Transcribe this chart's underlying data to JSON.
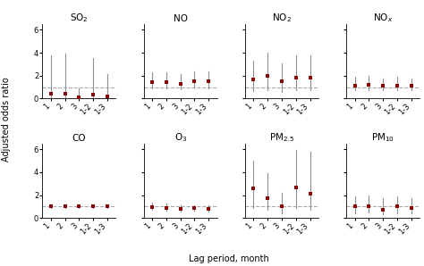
{
  "panels": [
    {
      "title": "SO$_2$",
      "x": [
        1,
        2,
        3,
        4,
        5
      ],
      "y": [
        0.4,
        0.4,
        0.15,
        0.35,
        0.2
      ],
      "ylo": [
        0.05,
        0.05,
        0.05,
        0.05,
        0.05
      ],
      "yhi": [
        3.8,
        3.9,
        0.9,
        3.5,
        2.1
      ]
    },
    {
      "title": "NO",
      "x": [
        1,
        2,
        3,
        4,
        5
      ],
      "y": [
        1.45,
        1.45,
        1.3,
        1.5,
        1.5
      ],
      "ylo": [
        0.9,
        0.9,
        0.8,
        0.95,
        0.9
      ],
      "yhi": [
        2.3,
        2.3,
        2.1,
        2.4,
        2.4
      ]
    },
    {
      "title": "NO$_2$",
      "x": [
        1,
        2,
        3,
        4,
        5
      ],
      "y": [
        1.7,
        2.0,
        1.55,
        1.85,
        1.85
      ],
      "ylo": [
        0.65,
        0.75,
        0.6,
        0.75,
        0.75
      ],
      "yhi": [
        3.3,
        4.0,
        3.1,
        3.8,
        3.8
      ]
    },
    {
      "title": "NO$_x$",
      "x": [
        1,
        2,
        3,
        4,
        5
      ],
      "y": [
        1.1,
        1.2,
        1.1,
        1.15,
        1.1
      ],
      "ylo": [
        0.7,
        0.75,
        0.7,
        0.72,
        0.72
      ],
      "yhi": [
        1.9,
        2.0,
        1.75,
        1.9,
        1.75
      ]
    },
    {
      "title": "CO",
      "x": [
        1,
        2,
        3,
        4,
        5
      ],
      "y": [
        1.0,
        1.0,
        1.0,
        1.0,
        1.0
      ],
      "ylo": [
        0.85,
        0.88,
        0.88,
        0.88,
        0.88
      ],
      "yhi": [
        1.15,
        1.12,
        1.12,
        1.12,
        1.12
      ]
    },
    {
      "title": "O$_3$",
      "x": [
        1,
        2,
        3,
        4,
        5
      ],
      "y": [
        0.95,
        0.9,
        0.82,
        0.85,
        0.82
      ],
      "ylo": [
        0.7,
        0.65,
        0.58,
        0.62,
        0.58
      ],
      "yhi": [
        1.35,
        1.25,
        1.15,
        1.15,
        1.12
      ]
    },
    {
      "title": "PM$_{2.5}$",
      "x": [
        1,
        2,
        3,
        4,
        5
      ],
      "y": [
        2.6,
        1.7,
        1.0,
        2.7,
        2.1
      ],
      "ylo": [
        0.85,
        0.7,
        0.4,
        0.9,
        0.7
      ],
      "yhi": [
        5.0,
        3.9,
        2.2,
        5.9,
        5.8
      ]
    },
    {
      "title": "PM$_{10}$",
      "x": [
        1,
        2,
        3,
        4,
        5
      ],
      "y": [
        1.0,
        1.05,
        0.75,
        1.0,
        0.9
      ],
      "ylo": [
        0.45,
        0.5,
        0.35,
        0.45,
        0.42
      ],
      "yhi": [
        1.9,
        2.0,
        1.7,
        1.9,
        1.75
      ]
    }
  ],
  "xtick_labels": [
    "1",
    "2",
    "3",
    "1-2",
    "1-3"
  ],
  "ylim": [
    0,
    6.5
  ],
  "yticks": [
    0,
    2,
    4,
    6
  ],
  "marker_color": "#8B0000",
  "ci_color": "#909090",
  "dashed_line_y": 1.0,
  "dashed_line_color": "#aaaaaa",
  "ylabel": "Adjusted odds ratio",
  "xlabel": "Lag period, month",
  "title_fontsize": 7.5,
  "label_fontsize": 7,
  "tick_fontsize": 6.0
}
